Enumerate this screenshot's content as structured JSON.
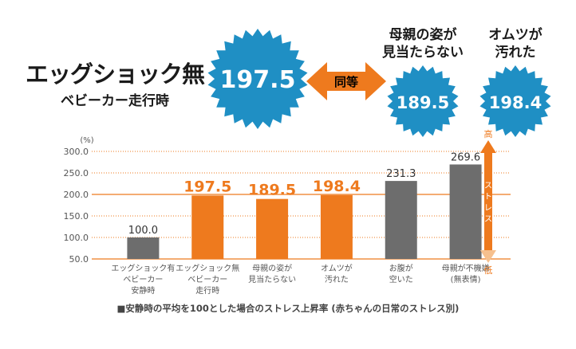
{
  "header": {
    "headline": "エッグショック無",
    "subline": "ベビーカー走行時",
    "main_value": "197.5",
    "equal_label": "同等",
    "badges": [
      {
        "label_line1": "母親の姿が",
        "label_line2": "見当たらない",
        "value": "189.5"
      },
      {
        "label_line1": "オムツが",
        "label_line2": "汚れた",
        "value": "198.4"
      }
    ]
  },
  "colors": {
    "badge_blue": "#1f8fc4",
    "orange": "#ee7a1e",
    "gray": "#6d6d6d",
    "grid_dotted": "#ee7a1e"
  },
  "chart_data": {
    "type": "bar",
    "unit_label": "(%)",
    "categories": [
      [
        "エッグショック有",
        "ベビーカー",
        "安静時"
      ],
      [
        "エッグショック無",
        "ベビーカー",
        "走行時"
      ],
      [
        "母親の姿が",
        "見当たらない"
      ],
      [
        "オムツが",
        "汚れた"
      ],
      [
        "お腹が",
        "空いた"
      ],
      [
        "母親が不機嫌",
        "(無表情)"
      ]
    ],
    "values": [
      100.0,
      197.5,
      189.5,
      198.4,
      231.3,
      269.6
    ],
    "value_labels": [
      "100.0",
      "197.5",
      "189.5",
      "198.4",
      "231.3",
      "269.6"
    ],
    "bar_colors": [
      "gray",
      "orange",
      "orange",
      "orange",
      "gray",
      "gray"
    ],
    "ylim": [
      50,
      300
    ],
    "yticks": [
      "300.0",
      "250.0",
      "200.0",
      "150.0",
      "100.0",
      "50.0"
    ],
    "reference_line": 200,
    "stress_axis": {
      "high": "高",
      "low": "低",
      "label": [
        "ス",
        "ト",
        "レ",
        "ス"
      ]
    },
    "grid": true
  },
  "footnote": "■安静時の平均を100とした場合のストレス上昇率 (赤ちゃんの日常のストレス別)"
}
